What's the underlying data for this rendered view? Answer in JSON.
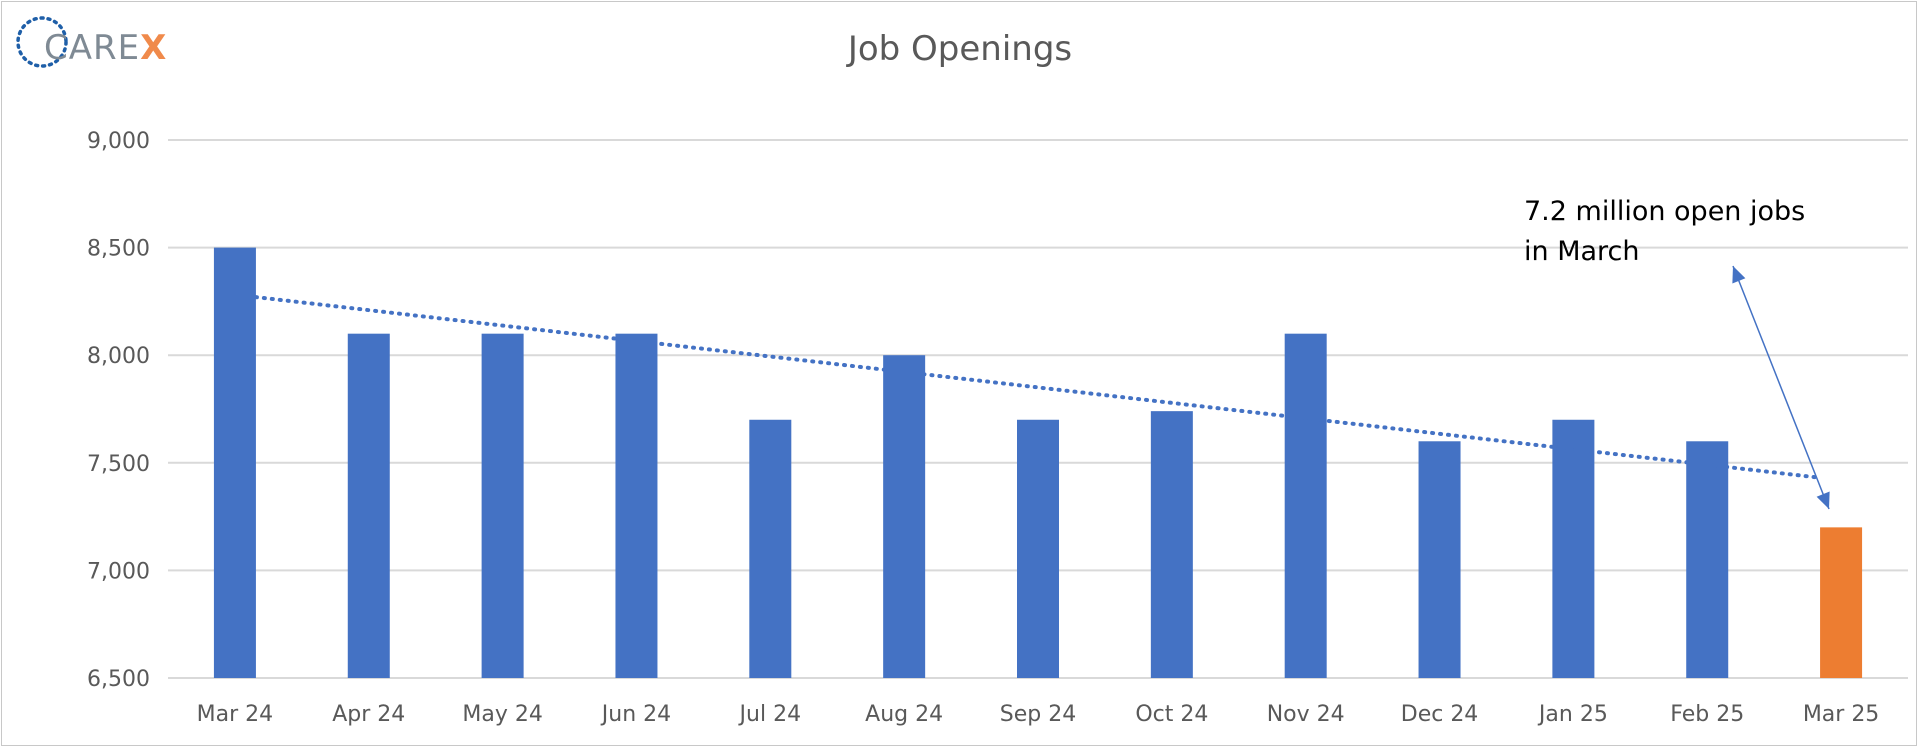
{
  "logo": {
    "text_main": "CARE",
    "text_accent": "X"
  },
  "colors": {
    "bar": "#4472c4",
    "highlight": "#ed7d31",
    "trend": "#4472c4",
    "grid": "#d9d9d9",
    "text": "#595959"
  },
  "chart_data": {
    "type": "bar",
    "title": "Job Openings",
    "xlabel": "",
    "ylabel": "",
    "ylim": [
      6500,
      9000
    ],
    "yticks": [
      6500,
      7000,
      7500,
      8000,
      8500,
      9000
    ],
    "ytick_labels": [
      "6,500",
      "7,000",
      "7,500",
      "8,000",
      "8,500",
      "9,000"
    ],
    "categories": [
      "Mar 24",
      "Apr 24",
      "May 24",
      "Jun 24",
      "Jul 24",
      "Aug 24",
      "Sep 24",
      "Oct 24",
      "Nov 24",
      "Dec 24",
      "Jan 25",
      "Feb 25",
      "Mar 25"
    ],
    "values": [
      8500,
      8100,
      8100,
      8100,
      7700,
      8000,
      7700,
      7740,
      8100,
      7600,
      7700,
      7600,
      7200
    ],
    "highlight_index": 12,
    "trendline": {
      "type": "linear",
      "style": "dotted",
      "start": 8270,
      "end": 7430
    },
    "grid": true,
    "legend": "none",
    "annotation": {
      "lines": [
        "7.2 million open jobs",
        "in March"
      ],
      "points_to": "Mar 25"
    }
  }
}
